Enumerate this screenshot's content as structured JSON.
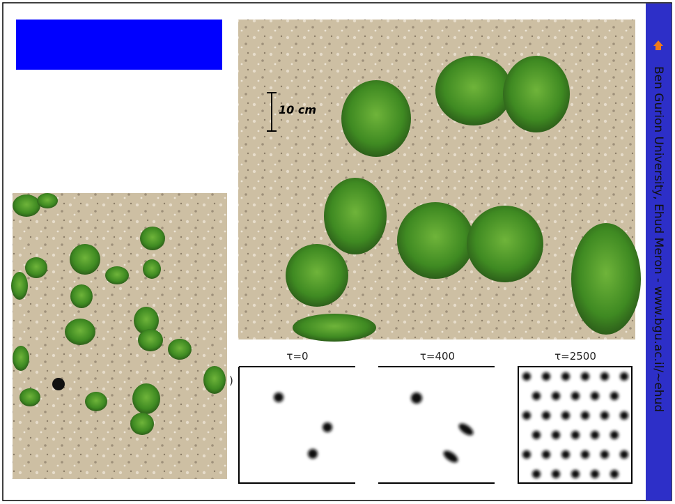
{
  "scale_label": "10 cm",
  "panel_prefix": ")",
  "panels": [
    {
      "label": "τ=0"
    },
    {
      "label": "τ=400"
    },
    {
      "label": "τ=2500"
    }
  ],
  "sidebar": {
    "text": "Ben Gurion University,  Ehud Meron -  www.bgu.ac.il/~ehud"
  }
}
